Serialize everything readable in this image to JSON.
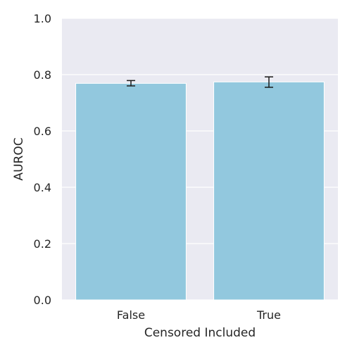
{
  "chart_data": {
    "type": "bar",
    "title": "",
    "xlabel": "Censored Included",
    "ylabel": "AUROC",
    "categories": [
      "False",
      "True"
    ],
    "values": [
      0.769,
      0.774
    ],
    "error_low": [
      0.76,
      0.755
    ],
    "error_high": [
      0.779,
      0.792
    ],
    "ylim": [
      0,
      1.0
    ],
    "yticks": [
      "0.0",
      "0.2",
      "0.4",
      "0.6",
      "0.8",
      "1.0"
    ],
    "grid": true,
    "legend": "none",
    "colors": {
      "bar": "#92c8de",
      "plot_background": "#eaeaf2",
      "grid": "#ffffff",
      "error_bar": "#1a1a1a"
    }
  }
}
